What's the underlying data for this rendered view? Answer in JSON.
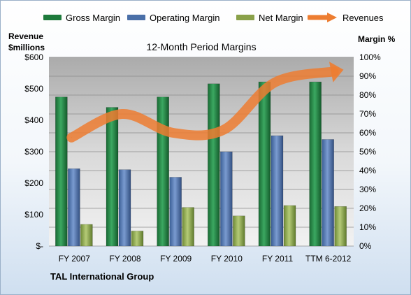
{
  "chart_data": {
    "type": "bar",
    "title": "12-Month Period Margins",
    "categories": [
      "FY 2007",
      "FY 2008",
      "FY 2009",
      "FY 2010",
      "FY 2011",
      "TTM 6-2012"
    ],
    "series": [
      {
        "name": "Gross Margin",
        "axis": "right",
        "unit": "percent",
        "values": [
          79,
          73.5,
          79,
          86,
          87,
          87
        ],
        "color": "#1e7a3c"
      },
      {
        "name": "Operating Margin",
        "axis": "right",
        "unit": "percent",
        "values": [
          41,
          40.5,
          36.5,
          50,
          58.5,
          56.5
        ],
        "color": "#4a6fa8"
      },
      {
        "name": "Net Margin",
        "axis": "right",
        "unit": "percent",
        "values": [
          11.5,
          8,
          20.5,
          16,
          21.5,
          21
        ],
        "color": "#8aa14a"
      },
      {
        "name": "Revenues",
        "axis": "left",
        "unit": "$millions",
        "type": "line",
        "values": [
          345,
          420,
          360,
          370,
          520,
          555
        ],
        "color": "#ed7d31"
      }
    ],
    "y_left": {
      "label": "Revenue $millions",
      "label_line1": "Revenue",
      "label_line2": "$millions",
      "range": [
        0,
        600
      ],
      "ticks": [
        "$-",
        "$100",
        "$200",
        "$300",
        "$400",
        "$500",
        "$600"
      ]
    },
    "y_right": {
      "label": "Margin %",
      "range": [
        0,
        100
      ],
      "ticks": [
        "0%",
        "10%",
        "20%",
        "30%",
        "40%",
        "50%",
        "60%",
        "70%",
        "80%",
        "90%",
        "100%"
      ]
    },
    "grid": true,
    "legend": "top"
  },
  "footer": {
    "company": "TAL International Group"
  }
}
